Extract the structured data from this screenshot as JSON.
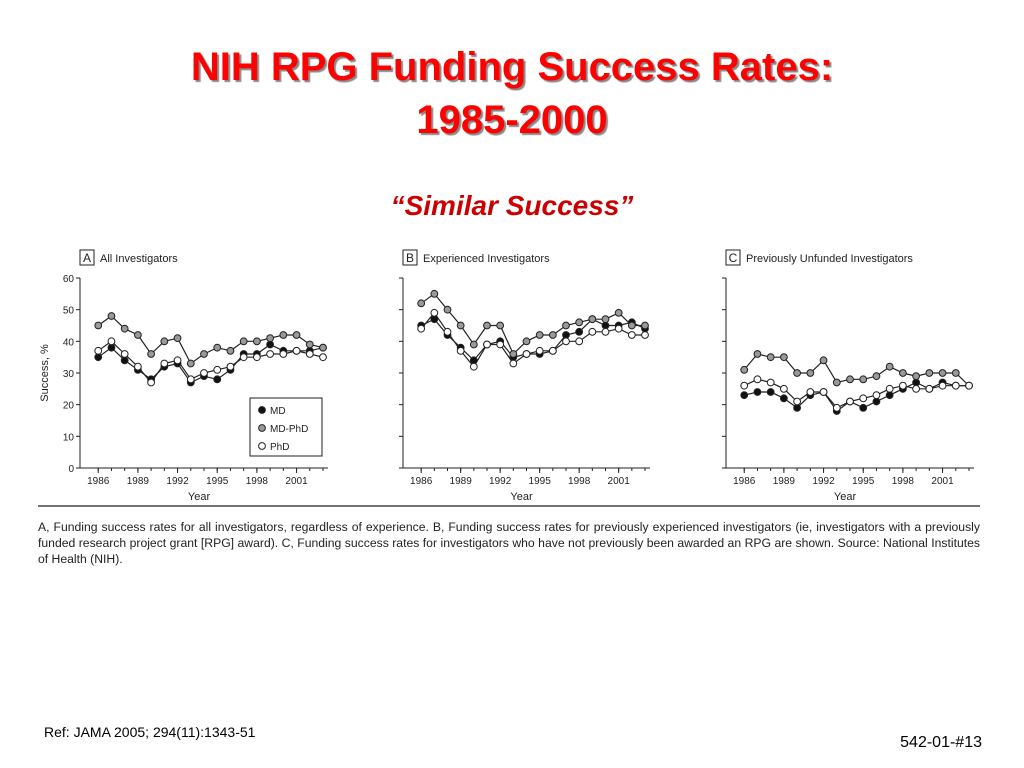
{
  "slide": {
    "title_line1": "NIH RPG Funding Success Rates:",
    "title_line2": "1985-2000",
    "subtitle": "“Similar Success”",
    "caption": "A, Funding success rates for all investigators, regardless of experience. B, Funding success rates for previously experienced investigators (ie, investigators with a previously funded research project grant [RPG] award). C, Funding success rates for investigators who have not previously been awarded an RPG are shown. Source: National Institutes of Health (NIH).",
    "reference": "Ref: JAMA 2005; 294(11):1343-51",
    "slide_id": "542-01-#13"
  },
  "chart_data": [
    {
      "type": "line",
      "panel_letter": "A",
      "title": "All Investigators",
      "xlabel": "Year",
      "ylabel": "Success, %",
      "xlim": [
        1985,
        2003
      ],
      "ylim": [
        0,
        60
      ],
      "yticks": [
        0,
        10,
        20,
        30,
        40,
        50,
        60
      ],
      "xticks": [
        1986,
        1989,
        1992,
        1995,
        1998,
        2001
      ],
      "legend": "bottom-right",
      "x": [
        1986,
        1987,
        1988,
        1989,
        1990,
        1991,
        1992,
        1993,
        1994,
        1995,
        1996,
        1997,
        1998,
        1999,
        2000,
        2001,
        2002,
        2003
      ],
      "series": [
        {
          "name": "MD",
          "marker": "filled",
          "values": [
            35,
            38,
            34,
            31,
            28,
            32,
            33,
            27,
            29,
            28,
            31,
            36,
            36,
            39,
            37,
            37,
            37,
            38
          ]
        },
        {
          "name": "MD-PhD",
          "marker": "gray",
          "values": [
            45,
            48,
            44,
            42,
            36,
            40,
            41,
            33,
            36,
            38,
            37,
            40,
            40,
            41,
            42,
            42,
            39,
            38
          ]
        },
        {
          "name": "PhD",
          "marker": "open",
          "values": [
            37,
            40,
            36,
            32,
            27,
            33,
            34,
            28,
            30,
            31,
            32,
            35,
            35,
            36,
            36,
            37,
            36,
            35
          ]
        }
      ]
    },
    {
      "type": "line",
      "panel_letter": "B",
      "title": "Experienced Investigators",
      "xlabel": "Year",
      "ylabel": "",
      "xlim": [
        1985,
        2003
      ],
      "ylim": [
        0,
        60
      ],
      "yticks": [
        0,
        10,
        20,
        30,
        40,
        50,
        60
      ],
      "xticks": [
        1986,
        1989,
        1992,
        1995,
        1998,
        2001
      ],
      "legend": "none",
      "x": [
        1986,
        1987,
        1988,
        1989,
        1990,
        1991,
        1992,
        1993,
        1994,
        1995,
        1996,
        1997,
        1998,
        1999,
        2000,
        2001,
        2002,
        2003
      ],
      "series": [
        {
          "name": "MD",
          "marker": "filled",
          "values": [
            45,
            47,
            42,
            38,
            34,
            39,
            40,
            35,
            36,
            36,
            37,
            42,
            43,
            47,
            45,
            45,
            46,
            44
          ]
        },
        {
          "name": "MD-PhD",
          "marker": "gray",
          "values": [
            52,
            55,
            50,
            45,
            39,
            45,
            45,
            36,
            40,
            42,
            42,
            45,
            46,
            47,
            47,
            49,
            45,
            45
          ]
        },
        {
          "name": "PhD",
          "marker": "open",
          "values": [
            44,
            49,
            43,
            37,
            32,
            39,
            39,
            33,
            36,
            37,
            37,
            40,
            40,
            43,
            43,
            44,
            42,
            42
          ]
        }
      ]
    },
    {
      "type": "line",
      "panel_letter": "C",
      "title": "Previously Unfunded Investigators",
      "xlabel": "Year",
      "ylabel": "",
      "xlim": [
        1985,
        2003
      ],
      "ylim": [
        0,
        60
      ],
      "yticks": [
        0,
        10,
        20,
        30,
        40,
        50,
        60
      ],
      "xticks": [
        1986,
        1989,
        1992,
        1995,
        1998,
        2001
      ],
      "legend": "none",
      "x": [
        1986,
        1987,
        1988,
        1989,
        1990,
        1991,
        1992,
        1993,
        1994,
        1995,
        1996,
        1997,
        1998,
        1999,
        2000,
        2001,
        2002,
        2003
      ],
      "series": [
        {
          "name": "MD",
          "marker": "filled",
          "values": [
            23,
            24,
            24,
            22,
            19,
            23,
            24,
            18,
            21,
            19,
            21,
            23,
            25,
            27,
            25,
            27,
            26,
            26
          ]
        },
        {
          "name": "MD-PhD",
          "marker": "gray",
          "values": [
            31,
            36,
            35,
            35,
            30,
            30,
            34,
            27,
            28,
            28,
            29,
            32,
            30,
            29,
            30,
            30,
            30,
            26
          ]
        },
        {
          "name": "PhD",
          "marker": "open",
          "values": [
            26,
            28,
            27,
            25,
            21,
            24,
            24,
            19,
            21,
            22,
            23,
            25,
            26,
            25,
            25,
            26,
            26,
            26
          ]
        }
      ]
    }
  ]
}
